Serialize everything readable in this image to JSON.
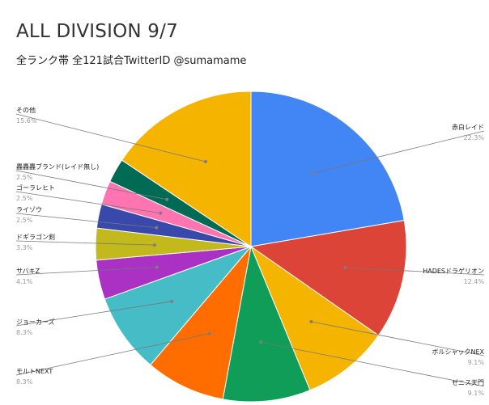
{
  "chart_data": {
    "type": "pie",
    "title": "ALL DIVISION 9/7",
    "subtitle": "全ランク帯 全121試合TwitterID @sumamame",
    "slices": [
      {
        "label": "赤白レイド",
        "value": 22.3,
        "pct_label": "22.3%",
        "color": "#4285F4"
      },
      {
        "label": "HADESドラゲリオン",
        "value": 12.4,
        "pct_label": "12.4%",
        "color": "#DB4437"
      },
      {
        "label": "ボルシャックNEX",
        "value": 9.1,
        "pct_label": "9.1%",
        "color": "#F4B400"
      },
      {
        "label": "ゼニス天門",
        "value": 9.1,
        "pct_label": "9.1%",
        "color": "#0F9D58"
      },
      {
        "label": "モルトNEXT",
        "value": 8.3,
        "pct_label": "8.3%",
        "color": "#FF6D01"
      },
      {
        "label": "ジョーカーズ",
        "value": 8.3,
        "pct_label": "8.3%",
        "color": "#46BDC6"
      },
      {
        "label": "サバキZ",
        "value": 4.1,
        "pct_label": "4.1%",
        "color": "#AB30C4"
      },
      {
        "label": "ドギラゴン剣",
        "value": 3.3,
        "pct_label": "3.3%",
        "color": "#C2B91D"
      },
      {
        "label": "ライゾウ",
        "value": 2.5,
        "pct_label": "2.5%",
        "color": "#3949AB"
      },
      {
        "label": "ゴーラレヒト",
        "value": 2.5,
        "pct_label": "2.5%",
        "color": "#FF74B1"
      },
      {
        "label": "轟轟轟ブランド(レイド無し)",
        "value": 2.5,
        "pct_label": "2.5%",
        "color": "#006B54"
      },
      {
        "label": "その他",
        "value": 15.6,
        "pct_label": "15.6%",
        "color": "#F4B400"
      }
    ],
    "legend": "none",
    "start_angle": "12 o'clock",
    "direction": "clockwise"
  }
}
